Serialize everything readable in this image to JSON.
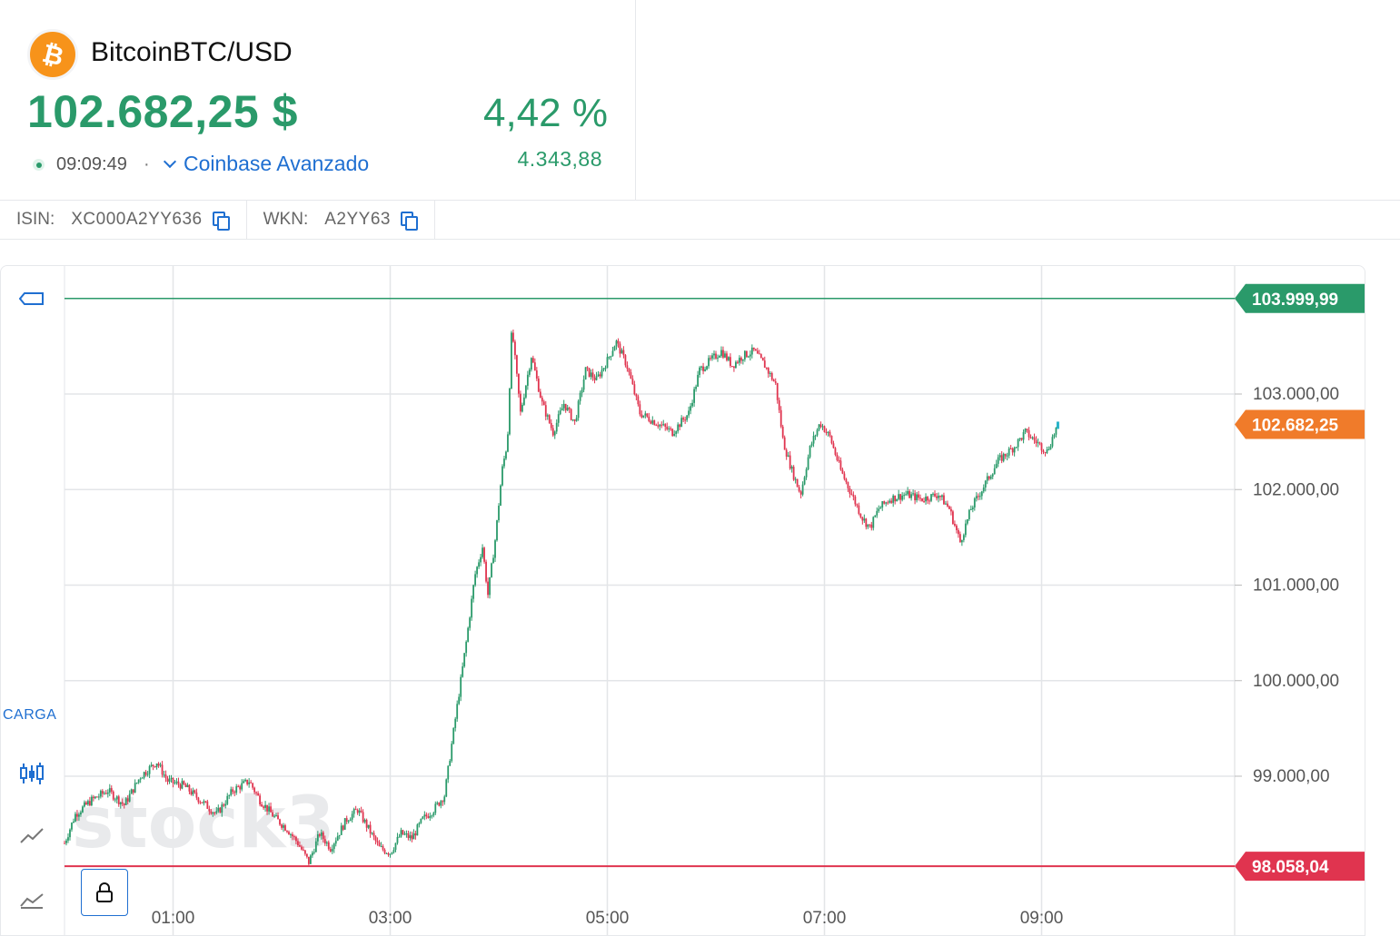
{
  "header": {
    "logo_symbol": "₿",
    "instrument_name": "BitcoinBTC/USD",
    "price": "102.682,25 $",
    "change_pct": "4,42 %",
    "change_abs": "4.343,88",
    "time": "09:09:49",
    "separator": "·",
    "exchange": "Coinbase Avanzado"
  },
  "identifiers": {
    "isin_label": "ISIN:",
    "isin_value": "XC000A2YY636",
    "wkn_label": "WKN:",
    "wkn_value": "A2YY63"
  },
  "toolbar": {
    "carga_label": "CARGA",
    "icons": [
      "price-line-tag-icon",
      "candlestick-icon",
      "line-chart-icon",
      "area-chart-icon",
      "lock-icon"
    ]
  },
  "colors": {
    "up": "#2a9a6a",
    "down": "#e0344f",
    "accent": "#1f6fd1",
    "current_price": "#f07b2a",
    "high_line": "#2a9a6a",
    "low_line": "#e0344f"
  },
  "chart_data": {
    "type": "candlestick",
    "watermark": "stock3",
    "x_ticks": [
      "01:00",
      "03:00",
      "05:00",
      "07:00",
      "09:00"
    ],
    "x_tick_hours": [
      1,
      3,
      5,
      7,
      9
    ],
    "x_range_hours": [
      0,
      10.8
    ],
    "y_ticks": [
      {
        "value": 103000,
        "label": "103.000,00"
      },
      {
        "value": 102000,
        "label": "102.000,00"
      },
      {
        "value": 101000,
        "label": "101.000,00"
      },
      {
        "value": 100000,
        "label": "100.000,00"
      },
      {
        "value": 99000,
        "label": "99.000,00"
      }
    ],
    "y_range": [
      97250,
      104350
    ],
    "grid": true,
    "high_line": {
      "value": 103999.99,
      "label": "103.999,99"
    },
    "low_line": {
      "value": 98058.04,
      "label": "98.058,04"
    },
    "current_price": {
      "value": 102682.25,
      "label": "102.682,25"
    },
    "price_path": [
      [
        0.0,
        98300
      ],
      [
        0.1,
        98600
      ],
      [
        0.25,
        98750
      ],
      [
        0.4,
        98850
      ],
      [
        0.55,
        98700
      ],
      [
        0.7,
        99000
      ],
      [
        0.85,
        99150
      ],
      [
        0.95,
        98950
      ],
      [
        1.1,
        98900
      ],
      [
        1.25,
        98750
      ],
      [
        1.4,
        98600
      ],
      [
        1.55,
        98850
      ],
      [
        1.7,
        98950
      ],
      [
        1.8,
        98750
      ],
      [
        1.95,
        98550
      ],
      [
        2.05,
        98450
      ],
      [
        2.15,
        98300
      ],
      [
        2.25,
        98100
      ],
      [
        2.35,
        98400
      ],
      [
        2.45,
        98250
      ],
      [
        2.6,
        98550
      ],
      [
        2.7,
        98650
      ],
      [
        2.8,
        98450
      ],
      [
        2.9,
        98250
      ],
      [
        3.0,
        98200
      ],
      [
        3.1,
        98400
      ],
      [
        3.2,
        98350
      ],
      [
        3.3,
        98550
      ],
      [
        3.4,
        98650
      ],
      [
        3.5,
        98800
      ],
      [
        3.6,
        99600
      ],
      [
        3.7,
        100400
      ],
      [
        3.78,
        101100
      ],
      [
        3.85,
        101400
      ],
      [
        3.9,
        100900
      ],
      [
        3.97,
        101500
      ],
      [
        4.03,
        102200
      ],
      [
        4.08,
        102500
      ],
      [
        4.12,
        103700
      ],
      [
        4.2,
        102800
      ],
      [
        4.3,
        103400
      ],
      [
        4.4,
        102900
      ],
      [
        4.5,
        102600
      ],
      [
        4.6,
        102900
      ],
      [
        4.7,
        102700
      ],
      [
        4.8,
        103250
      ],
      [
        4.9,
        103150
      ],
      [
        5.0,
        103350
      ],
      [
        5.08,
        103550
      ],
      [
        5.18,
        103300
      ],
      [
        5.3,
        102800
      ],
      [
        5.45,
        102700
      ],
      [
        5.6,
        102600
      ],
      [
        5.75,
        102800
      ],
      [
        5.85,
        103250
      ],
      [
        5.95,
        103350
      ],
      [
        6.05,
        103450
      ],
      [
        6.15,
        103300
      ],
      [
        6.25,
        103400
      ],
      [
        6.35,
        103450
      ],
      [
        6.45,
        103300
      ],
      [
        6.55,
        103100
      ],
      [
        6.62,
        102500
      ],
      [
        6.7,
        102200
      ],
      [
        6.78,
        101950
      ],
      [
        6.87,
        102450
      ],
      [
        6.96,
        102700
      ],
      [
        7.05,
        102550
      ],
      [
        7.15,
        102200
      ],
      [
        7.25,
        101950
      ],
      [
        7.35,
        101700
      ],
      [
        7.42,
        101600
      ],
      [
        7.5,
        101800
      ],
      [
        7.6,
        101900
      ],
      [
        7.75,
        101950
      ],
      [
        7.9,
        101900
      ],
      [
        8.05,
        101950
      ],
      [
        8.15,
        101800
      ],
      [
        8.25,
        101450
      ],
      [
        8.35,
        101800
      ],
      [
        8.45,
        102000
      ],
      [
        8.6,
        102300
      ],
      [
        8.75,
        102450
      ],
      [
        8.85,
        102600
      ],
      [
        8.95,
        102500
      ],
      [
        9.05,
        102400
      ],
      [
        9.15,
        102682.25
      ]
    ]
  }
}
